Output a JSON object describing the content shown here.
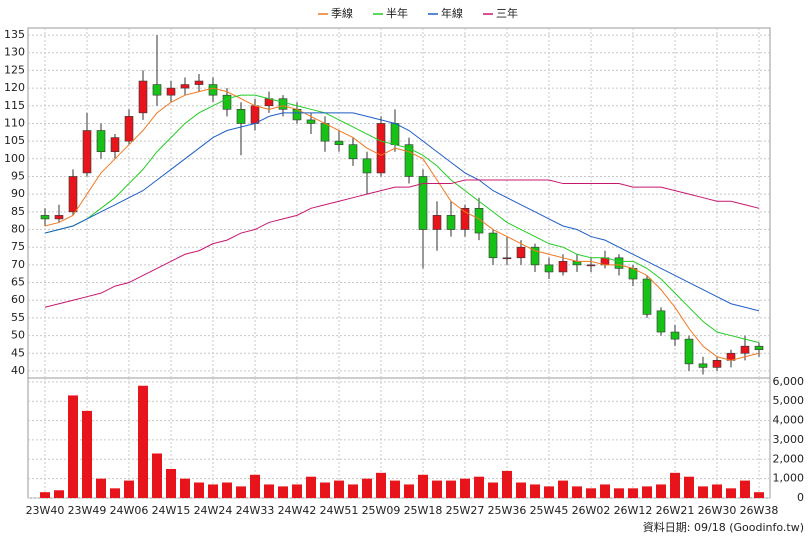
{
  "chart_data": [
    {
      "type": "candlestick",
      "categories": [
        "23W40",
        null,
        null,
        "23W49",
        null,
        null,
        "24W06",
        null,
        null,
        "24W15",
        null,
        null,
        "24W24",
        null,
        null,
        "24W33",
        null,
        null,
        "24W42",
        null,
        null,
        "24W51",
        null,
        null,
        "25W09",
        null,
        null,
        "25W18",
        null,
        null,
        "25W27",
        null,
        null,
        "25W36",
        null,
        null,
        "25W45",
        null,
        null,
        "26W02",
        null,
        null,
        "26W12",
        null,
        null,
        "26W21",
        null,
        null,
        "26W30",
        null,
        null,
        "26W38"
      ],
      "open": [
        84,
        83,
        85,
        96,
        108,
        102,
        105,
        113,
        121,
        118,
        120,
        121,
        121,
        118,
        114,
        110,
        115,
        117,
        114,
        111,
        110,
        105,
        104,
        100,
        96,
        110,
        104,
        95,
        80,
        84,
        80,
        86,
        79,
        72,
        72,
        75,
        70,
        68,
        71,
        70,
        70,
        72,
        69,
        66,
        57,
        51,
        49,
        42,
        41,
        43,
        45,
        47
      ],
      "high": [
        86,
        87,
        97,
        113,
        110,
        107,
        114,
        125,
        135,
        122,
        123,
        124,
        123,
        120,
        116,
        117,
        119,
        118,
        116,
        113,
        112,
        108,
        106,
        102,
        112,
        114,
        106,
        97,
        88,
        88,
        87,
        89,
        80,
        78,
        77,
        76,
        72,
        73,
        73,
        72,
        74,
        73,
        70,
        67,
        58,
        53,
        50,
        44,
        44,
        46,
        50,
        48
      ],
      "low": [
        81,
        82,
        84,
        95,
        100,
        100,
        104,
        111,
        115,
        116,
        118,
        119,
        116,
        112,
        101,
        108,
        113,
        112,
        110,
        107,
        102,
        102,
        98,
        90,
        95,
        102,
        93,
        69,
        74,
        78,
        78,
        77,
        70,
        70,
        70,
        68,
        66,
        67,
        68,
        68,
        69,
        67,
        64,
        55,
        50,
        47,
        40,
        39,
        40,
        41,
        43,
        44
      ],
      "close": [
        83,
        84,
        95,
        108,
        102,
        106,
        112,
        122,
        118,
        120,
        121,
        122,
        118,
        114,
        110,
        115,
        117,
        114,
        111,
        110,
        105,
        104,
        100,
        96,
        110,
        104,
        95,
        80,
        84,
        80,
        86,
        79,
        72,
        72,
        75,
        70,
        68,
        71,
        70,
        70,
        72,
        69,
        66,
        56,
        51,
        49,
        42,
        41,
        43,
        45,
        47,
        46
      ],
      "up_color": "#e8141b",
      "down_color": "#17c217",
      "series": [
        {
          "name": "季線",
          "color": "#f07820",
          "values": [
            81,
            82,
            84,
            90,
            96,
            100,
            104,
            108,
            113,
            116,
            118,
            119,
            120,
            119,
            117,
            115,
            114,
            115,
            114,
            112,
            110,
            108,
            106,
            103,
            101,
            103,
            102,
            100,
            94,
            88,
            85,
            83,
            80,
            78,
            76,
            74,
            73,
            72,
            71,
            71,
            70,
            70,
            69,
            67,
            63,
            58,
            52,
            47,
            44,
            43,
            44,
            45
          ]
        },
        {
          "name": "半年",
          "color": "#22cc22",
          "values": [
            79,
            80,
            81,
            83,
            86,
            89,
            93,
            97,
            102,
            106,
            110,
            113,
            115,
            117,
            118,
            118,
            117,
            116,
            115,
            114,
            113,
            111,
            109,
            107,
            105,
            104,
            103,
            101,
            98,
            94,
            91,
            88,
            85,
            82,
            80,
            78,
            76,
            75,
            73,
            72,
            72,
            71,
            71,
            69,
            66,
            62,
            58,
            54,
            51,
            50,
            49,
            48
          ]
        },
        {
          "name": "年線",
          "color": "#1f5fc8",
          "values": [
            79,
            80,
            81,
            83,
            85,
            87,
            89,
            91,
            94,
            97,
            100,
            103,
            106,
            108,
            109,
            110,
            112,
            113,
            113,
            113,
            113,
            113,
            113,
            112,
            111,
            110,
            108,
            105,
            102,
            99,
            96,
            94,
            91,
            89,
            87,
            85,
            83,
            81,
            80,
            78,
            77,
            75,
            73,
            71,
            69,
            67,
            65,
            63,
            61,
            59,
            58,
            57
          ]
        },
        {
          "name": "三年",
          "color": "#c8186e",
          "values": [
            58,
            59,
            60,
            61,
            62,
            64,
            65,
            67,
            69,
            71,
            73,
            74,
            76,
            77,
            79,
            80,
            82,
            83,
            84,
            86,
            87,
            88,
            89,
            90,
            91,
            92,
            92,
            93,
            93,
            93,
            94,
            94,
            94,
            94,
            94,
            94,
            94,
            93,
            93,
            93,
            93,
            93,
            92,
            92,
            92,
            91,
            90,
            89,
            88,
            88,
            87,
            86
          ]
        }
      ],
      "ylim": [
        38,
        137
      ],
      "yticks": [
        40,
        45,
        50,
        55,
        60,
        65,
        70,
        75,
        80,
        85,
        90,
        95,
        100,
        105,
        110,
        115,
        120,
        125,
        130,
        135
      ],
      "grid": true
    },
    {
      "type": "bar",
      "color": "#e8141b",
      "values": [
        300,
        400,
        5300,
        4500,
        1000,
        500,
        900,
        5800,
        2300,
        1500,
        1000,
        800,
        700,
        800,
        600,
        1200,
        700,
        600,
        700,
        1100,
        800,
        900,
        700,
        1000,
        1300,
        900,
        700,
        1200,
        900,
        900,
        1000,
        1100,
        800,
        1400,
        800,
        700,
        600,
        900,
        600,
        500,
        700,
        500,
        500,
        600,
        700,
        1300,
        1100,
        600,
        700,
        500,
        900,
        300
      ],
      "ylim": [
        0,
        6200
      ],
      "yticks": [
        0,
        {
          "value": 1000,
          "label": "1,000"
        },
        {
          "value": 2000,
          "label": "2,000"
        },
        {
          "value": 3000,
          "label": "3,000"
        },
        {
          "value": 4000,
          "label": "4,000"
        },
        {
          "value": 5000,
          "label": "5,000"
        },
        {
          "value": 6000,
          "label": "6,000"
        }
      ],
      "grid": true
    }
  ],
  "source": "資料日期: 09/18 (Goodinfo.tw)"
}
